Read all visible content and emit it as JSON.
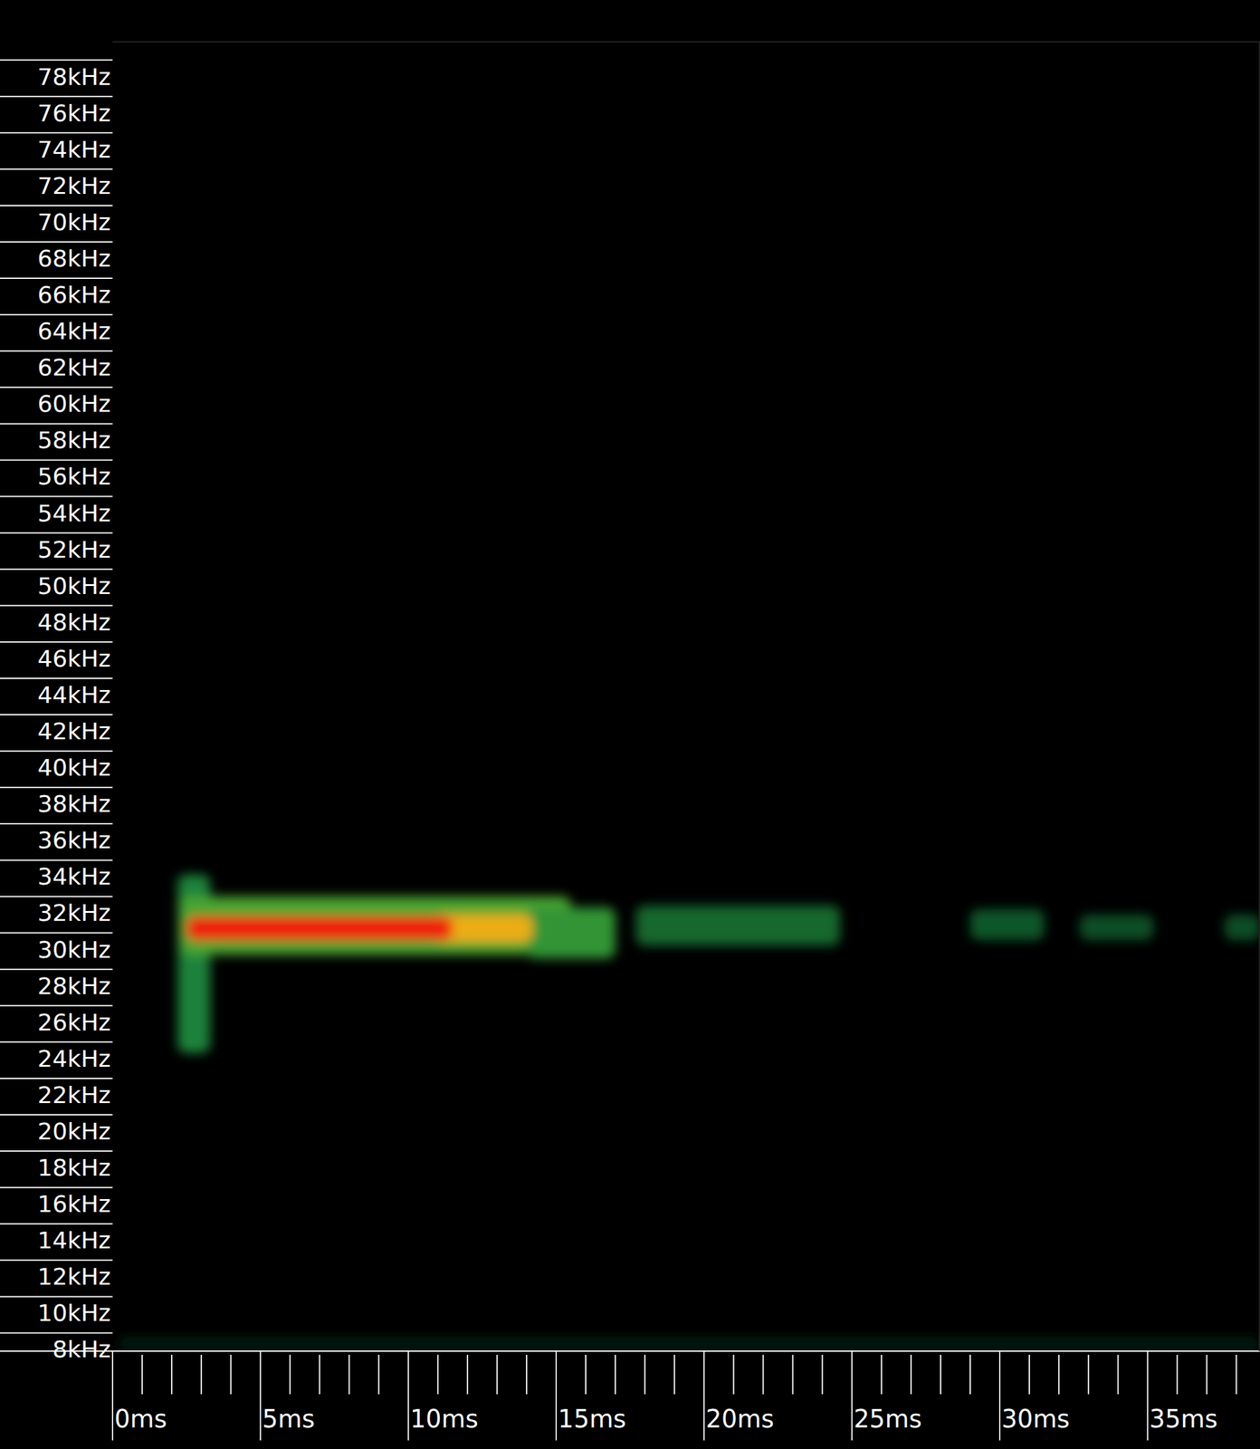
{
  "chart_data": {
    "type": "spectrogram",
    "xlim": [
      0,
      38.8
    ],
    "ylim": [
      7,
      79
    ],
    "zlim": [
      0,
      1
    ],
    "xticks": [
      {
        "value": 0,
        "label": "0ms"
      },
      {
        "value": 5,
        "label": "5ms"
      },
      {
        "value": 10,
        "label": "10ms"
      },
      {
        "value": 15,
        "label": "15ms"
      },
      {
        "value": 20,
        "label": "20ms"
      },
      {
        "value": 25,
        "label": "25ms"
      },
      {
        "value": 30,
        "label": "30ms"
      },
      {
        "value": 35,
        "label": "35ms"
      }
    ],
    "xminor": [
      1,
      2,
      3,
      4,
      6,
      7,
      8,
      9,
      11,
      12,
      13,
      14,
      16,
      17,
      18,
      19,
      21,
      22,
      23,
      24,
      26,
      27,
      28,
      29,
      31,
      32,
      33,
      34,
      36,
      37,
      38
    ],
    "yticks": [
      {
        "value": 8,
        "label": "8kHz"
      },
      {
        "value": 10,
        "label": "10kHz"
      },
      {
        "value": 12,
        "label": "12kHz"
      },
      {
        "value": 14,
        "label": "14kHz"
      },
      {
        "value": 16,
        "label": "16kHz"
      },
      {
        "value": 18,
        "label": "18kHz"
      },
      {
        "value": 20,
        "label": "20kHz"
      },
      {
        "value": 22,
        "label": "22kHz"
      },
      {
        "value": 24,
        "label": "24kHz"
      },
      {
        "value": 26,
        "label": "26kHz"
      },
      {
        "value": 28,
        "label": "28kHz"
      },
      {
        "value": 30,
        "label": "30kHz"
      },
      {
        "value": 32,
        "label": "32kHz"
      },
      {
        "value": 34,
        "label": "34kHz"
      },
      {
        "value": 36,
        "label": "36kHz"
      },
      {
        "value": 38,
        "label": "38kHz"
      },
      {
        "value": 40,
        "label": "40kHz"
      },
      {
        "value": 42,
        "label": "42kHz"
      },
      {
        "value": 44,
        "label": "44kHz"
      },
      {
        "value": 46,
        "label": "46kHz"
      },
      {
        "value": 48,
        "label": "48kHz"
      },
      {
        "value": 50,
        "label": "50kHz"
      },
      {
        "value": 52,
        "label": "52kHz"
      },
      {
        "value": 54,
        "label": "54kHz"
      },
      {
        "value": 56,
        "label": "56kHz"
      },
      {
        "value": 58,
        "label": "58kHz"
      },
      {
        "value": 60,
        "label": "60kHz"
      },
      {
        "value": 62,
        "label": "62kHz"
      },
      {
        "value": 64,
        "label": "64kHz"
      },
      {
        "value": 66,
        "label": "66kHz"
      },
      {
        "value": 68,
        "label": "68kHz"
      },
      {
        "value": 70,
        "label": "70kHz"
      },
      {
        "value": 72,
        "label": "72kHz"
      },
      {
        "value": 74,
        "label": "74kHz"
      },
      {
        "value": 76,
        "label": "76kHz"
      },
      {
        "value": 78,
        "label": "78kHz"
      }
    ],
    "cells": [
      {
        "t0": 0.2,
        "t1": 38.8,
        "f0": 7.0,
        "f1": 7.8,
        "level": 0.12
      },
      {
        "t0": 2.2,
        "t1": 3.3,
        "f0": 23.4,
        "f1": 33.2,
        "level": 0.35
      },
      {
        "t0": 2.3,
        "t1": 15.5,
        "f0": 28.8,
        "f1": 32.0,
        "level": 0.45
      },
      {
        "t0": 14.0,
        "t1": 17.0,
        "f0": 28.6,
        "f1": 31.4,
        "level": 0.4
      },
      {
        "t0": 17.7,
        "t1": 24.6,
        "f0": 29.3,
        "f1": 31.5,
        "level": 0.3
      },
      {
        "t0": 29.0,
        "t1": 31.5,
        "f0": 29.6,
        "f1": 31.3,
        "level": 0.27
      },
      {
        "t0": 32.7,
        "t1": 35.2,
        "f0": 29.6,
        "f1": 31.0,
        "level": 0.25
      },
      {
        "t0": 37.6,
        "t1": 38.8,
        "f0": 29.6,
        "f1": 31.0,
        "level": 0.25
      },
      {
        "t0": 10.8,
        "t1": 14.2,
        "f0": 29.5,
        "f1": 31.0,
        "level": 0.78
      },
      {
        "t0": 2.5,
        "t1": 11.5,
        "f0": 29.6,
        "f1": 30.9,
        "level": 1.0
      }
    ]
  }
}
